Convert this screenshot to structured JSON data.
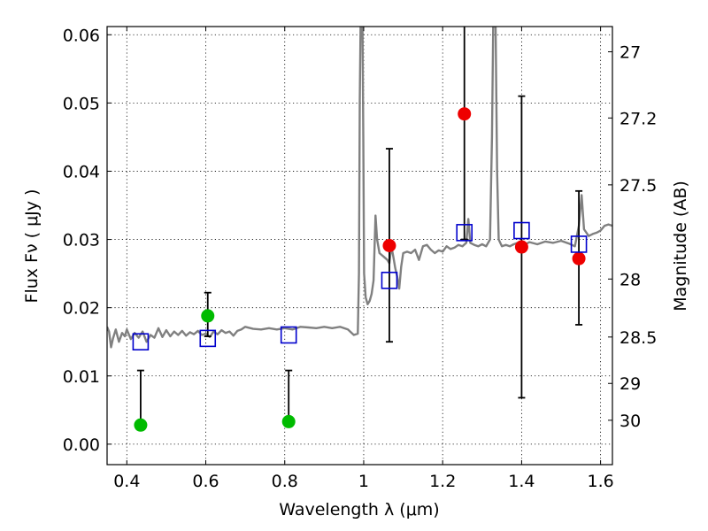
{
  "chart_data": {
    "type": "scatter",
    "x_axis": {
      "label": "Wavelength  λ (μm)",
      "range": [
        0.35,
        1.63
      ],
      "ticks": [
        0.4,
        0.6,
        0.8,
        1.0,
        1.2,
        1.4,
        1.6
      ],
      "tick_labels": [
        "0.4",
        "0.6",
        "0.8",
        "1",
        "1.2",
        "1.4",
        "1.6"
      ]
    },
    "y_axis_left": {
      "label": "Flux  Fν  ( μJy )",
      "range": [
        -0.003,
        0.0612
      ],
      "ticks": [
        0.0,
        0.01,
        0.02,
        0.03,
        0.04,
        0.05,
        0.06
      ],
      "tick_labels": [
        "0.00",
        "0.01",
        "0.02",
        "0.03",
        "0.04",
        "0.05",
        "0.06"
      ]
    },
    "y_axis_right": {
      "label": "Magnitude (AB)",
      "tick_labels": [
        "27",
        "27.2",
        "27.5",
        "28",
        "28.5",
        "29",
        "30"
      ],
      "tick_flux_positions": [
        0.0575,
        0.0478,
        0.038,
        0.0242,
        0.0157,
        0.0089,
        0.0035
      ]
    },
    "grid": true,
    "model_spectrum": {
      "color": "#808080",
      "points": [
        [
          0.35,
          0.0172
        ],
        [
          0.355,
          0.0165
        ],
        [
          0.36,
          0.0142
        ],
        [
          0.365,
          0.0155
        ],
        [
          0.372,
          0.0168
        ],
        [
          0.38,
          0.015
        ],
        [
          0.388,
          0.0163
        ],
        [
          0.395,
          0.0158
        ],
        [
          0.4,
          0.0168
        ],
        [
          0.41,
          0.0154
        ],
        [
          0.42,
          0.0163
        ],
        [
          0.43,
          0.0156
        ],
        [
          0.44,
          0.0165
        ],
        [
          0.45,
          0.015
        ],
        [
          0.46,
          0.016
        ],
        [
          0.47,
          0.0156
        ],
        [
          0.48,
          0.017
        ],
        [
          0.49,
          0.0157
        ],
        [
          0.5,
          0.0167
        ],
        [
          0.51,
          0.0158
        ],
        [
          0.52,
          0.0165
        ],
        [
          0.53,
          0.016
        ],
        [
          0.54,
          0.0166
        ],
        [
          0.55,
          0.0159
        ],
        [
          0.56,
          0.0164
        ],
        [
          0.57,
          0.0161
        ],
        [
          0.58,
          0.0166
        ],
        [
          0.59,
          0.016
        ],
        [
          0.6,
          0.0162
        ],
        [
          0.61,
          0.0157
        ],
        [
          0.62,
          0.0165
        ],
        [
          0.63,
          0.0161
        ],
        [
          0.64,
          0.0167
        ],
        [
          0.65,
          0.0163
        ],
        [
          0.66,
          0.0165
        ],
        [
          0.67,
          0.0159
        ],
        [
          0.68,
          0.0166
        ],
        [
          0.69,
          0.0168
        ],
        [
          0.7,
          0.0172
        ],
        [
          0.72,
          0.0169
        ],
        [
          0.74,
          0.0168
        ],
        [
          0.76,
          0.017
        ],
        [
          0.78,
          0.0168
        ],
        [
          0.8,
          0.017
        ],
        [
          0.82,
          0.0168
        ],
        [
          0.84,
          0.0172
        ],
        [
          0.86,
          0.0171
        ],
        [
          0.88,
          0.017
        ],
        [
          0.9,
          0.0172
        ],
        [
          0.92,
          0.017
        ],
        [
          0.94,
          0.0172
        ],
        [
          0.96,
          0.0168
        ],
        [
          0.975,
          0.016
        ],
        [
          0.985,
          0.0162
        ],
        [
          0.988,
          0.025
        ],
        [
          0.99,
          0.05
        ],
        [
          0.992,
          0.0612
        ],
        [
          0.997,
          0.0612
        ],
        [
          0.999,
          0.045
        ],
        [
          1.001,
          0.025
        ],
        [
          1.005,
          0.0215
        ],
        [
          1.01,
          0.0205
        ],
        [
          1.015,
          0.021
        ],
        [
          1.02,
          0.022
        ],
        [
          1.025,
          0.024
        ],
        [
          1.028,
          0.03
        ],
        [
          1.03,
          0.0335
        ],
        [
          1.034,
          0.03
        ],
        [
          1.04,
          0.028
        ],
        [
          1.05,
          0.0275
        ],
        [
          1.06,
          0.027
        ],
        [
          1.065,
          0.0265
        ],
        [
          1.07,
          0.029
        ],
        [
          1.075,
          0.0275
        ],
        [
          1.08,
          0.0258
        ],
        [
          1.085,
          0.0245
        ],
        [
          1.09,
          0.0228
        ],
        [
          1.095,
          0.026
        ],
        [
          1.1,
          0.028
        ],
        [
          1.11,
          0.0282
        ],
        [
          1.12,
          0.028
        ],
        [
          1.13,
          0.0285
        ],
        [
          1.14,
          0.027
        ],
        [
          1.15,
          0.029
        ],
        [
          1.16,
          0.0292
        ],
        [
          1.17,
          0.0285
        ],
        [
          1.18,
          0.028
        ],
        [
          1.19,
          0.0284
        ],
        [
          1.2,
          0.0282
        ],
        [
          1.21,
          0.029
        ],
        [
          1.22,
          0.0286
        ],
        [
          1.23,
          0.0288
        ],
        [
          1.24,
          0.0292
        ],
        [
          1.25,
          0.029
        ],
        [
          1.26,
          0.0295
        ],
        [
          1.265,
          0.033
        ],
        [
          1.27,
          0.0295
        ],
        [
          1.28,
          0.0292
        ],
        [
          1.29,
          0.029
        ],
        [
          1.3,
          0.0293
        ],
        [
          1.31,
          0.029
        ],
        [
          1.32,
          0.03
        ],
        [
          1.325,
          0.045
        ],
        [
          1.328,
          0.0612
        ],
        [
          1.334,
          0.0612
        ],
        [
          1.338,
          0.04
        ],
        [
          1.342,
          0.03
        ],
        [
          1.35,
          0.029
        ],
        [
          1.36,
          0.0292
        ],
        [
          1.37,
          0.029
        ],
        [
          1.38,
          0.0293
        ],
        [
          1.39,
          0.0295
        ],
        [
          1.4,
          0.029
        ],
        [
          1.42,
          0.0296
        ],
        [
          1.44,
          0.0293
        ],
        [
          1.46,
          0.0297
        ],
        [
          1.48,
          0.0295
        ],
        [
          1.5,
          0.0298
        ],
        [
          1.52,
          0.0294
        ],
        [
          1.535,
          0.029
        ],
        [
          1.545,
          0.032
        ],
        [
          1.552,
          0.0365
        ],
        [
          1.558,
          0.0315
        ],
        [
          1.57,
          0.0305
        ],
        [
          1.58,
          0.0308
        ],
        [
          1.59,
          0.031
        ],
        [
          1.6,
          0.0313
        ],
        [
          1.61,
          0.032
        ],
        [
          1.62,
          0.0322
        ],
        [
          1.63,
          0.032
        ]
      ]
    },
    "series": [
      {
        "marker": "circle",
        "color": "#00bb00",
        "points": [
          {
            "x": 0.435,
            "y": 0.0028,
            "yerr_low": 0.0028,
            "yerr_high": 0.0108
          },
          {
            "x": 0.605,
            "y": 0.0188,
            "yerr_low": 0.0158,
            "yerr_high": 0.0222
          },
          {
            "x": 0.81,
            "y": 0.0033,
            "yerr_low": 0.0033,
            "yerr_high": 0.0108
          }
        ]
      },
      {
        "marker": "circle",
        "color": "#ee0000",
        "points": [
          {
            "x": 1.065,
            "y": 0.0291,
            "yerr_low": 0.015,
            "yerr_high": 0.0433
          },
          {
            "x": 1.255,
            "y": 0.0484,
            "yerr_low": 0.03,
            "yerr_high": 0.0612
          },
          {
            "x": 1.4,
            "y": 0.0289,
            "yerr_low": 0.0068,
            "yerr_high": 0.051
          },
          {
            "x": 1.545,
            "y": 0.0272,
            "yerr_low": 0.0175,
            "yerr_high": 0.0371
          }
        ]
      },
      {
        "marker": "open-square",
        "color": "#0000cc",
        "points": [
          {
            "x": 0.435,
            "y": 0.015
          },
          {
            "x": 0.605,
            "y": 0.0155
          },
          {
            "x": 0.81,
            "y": 0.016
          },
          {
            "x": 1.065,
            "y": 0.024
          },
          {
            "x": 1.255,
            "y": 0.031
          },
          {
            "x": 1.4,
            "y": 0.0313
          },
          {
            "x": 1.545,
            "y": 0.0293
          }
        ]
      }
    ]
  }
}
